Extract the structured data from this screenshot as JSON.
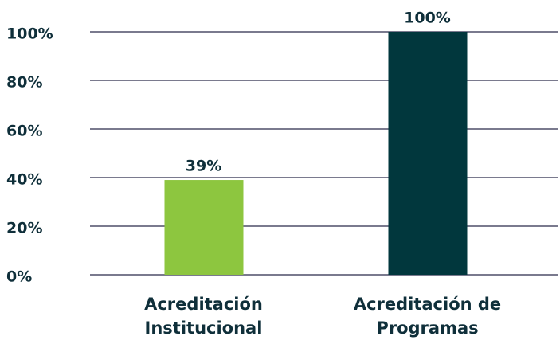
{
  "chart_data": {
    "type": "bar",
    "categories": [
      "Acreditación Institucional",
      "Acreditación de Programas"
    ],
    "values": [
      39,
      100
    ],
    "value_labels": [
      "39%",
      "100%"
    ],
    "colors": [
      "#8dc63f",
      "#01373d"
    ],
    "ylim": [
      0,
      100
    ],
    "yticks": [
      {
        "value": 0,
        "label": "0%"
      },
      {
        "value": 20,
        "label": "20%"
      },
      {
        "value": 40,
        "label": "40%"
      },
      {
        "value": 60,
        "label": "60%"
      },
      {
        "value": 80,
        "label": "80%"
      },
      {
        "value": 100,
        "label": "100%"
      }
    ],
    "grid": true
  }
}
